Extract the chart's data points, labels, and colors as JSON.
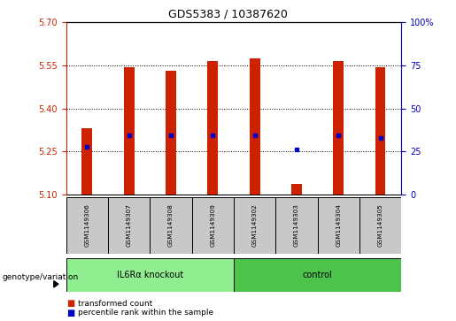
{
  "title": "GDS5383 / 10387620",
  "samples": [
    "GSM1149306",
    "GSM1149307",
    "GSM1149308",
    "GSM1149309",
    "GSM1149302",
    "GSM1149303",
    "GSM1149304",
    "GSM1149305"
  ],
  "bar_tops": [
    5.33,
    5.545,
    5.53,
    5.565,
    5.575,
    5.135,
    5.565,
    5.545
  ],
  "bar_bottoms": [
    5.1,
    5.1,
    5.1,
    5.1,
    5.1,
    5.1,
    5.1,
    5.1
  ],
  "percentile_values": [
    5.265,
    5.305,
    5.305,
    5.305,
    5.305,
    5.255,
    5.305,
    5.295
  ],
  "groups": [
    {
      "label": "IL6Rα knockout",
      "start": 0,
      "end": 4,
      "color": "#90EE90"
    },
    {
      "label": "control",
      "start": 4,
      "end": 8,
      "color": "#4CC44C"
    }
  ],
  "ylim": [
    5.1,
    5.7
  ],
  "yticks": [
    5.1,
    5.25,
    5.4,
    5.55,
    5.7
  ],
  "y2ticks": [
    0,
    25,
    50,
    75,
    100
  ],
  "y2labels": [
    "0",
    "25",
    "50",
    "75",
    "100%"
  ],
  "bar_color": "#CC2200",
  "dot_color": "#0000CC",
  "bg_color": "#FFFFFF",
  "label_color_left": "#CC2200",
  "label_color_right": "#0000BB",
  "xlabel_bg": "#C8C8C8",
  "genotype_label": "genotype/variation"
}
